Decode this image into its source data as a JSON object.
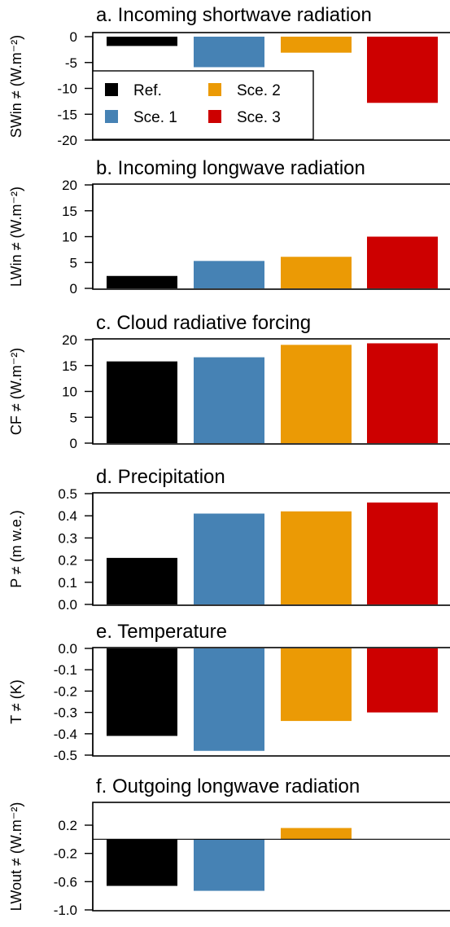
{
  "colors": {
    "Ref.": "#000000",
    "Sce. 1": "#4682b4",
    "Sce. 2": "#eb9a05",
    "Sce. 3": "#cd0000"
  },
  "legend": {
    "panel": 0,
    "entries": [
      "Ref.",
      "Sce. 1",
      "Sce. 2",
      "Sce. 3"
    ]
  },
  "chart_data": [
    {
      "type": "bar",
      "title": "a. Incoming shortwave radiation",
      "ylabel": "SWin ≠ (W.m⁻²)",
      "categories": [
        "Ref.",
        "Sce. 1",
        "Sce. 2",
        "Sce. 3"
      ],
      "values": [
        -1.8,
        -5.9,
        -3.1,
        -12.8
      ],
      "ylim": [
        -20,
        0
      ],
      "ticks": [
        0,
        -5,
        -10,
        -15,
        -20
      ],
      "tick_labels": [
        "0",
        "-5",
        "-10",
        "-15",
        "-20"
      ],
      "zero_line": false
    },
    {
      "type": "bar",
      "title": "b. Incoming longwave radiation",
      "ylabel": "LWin ≠ (W.m⁻²)",
      "categories": [
        "Ref.",
        "Sce. 1",
        "Sce. 2",
        "Sce. 3"
      ],
      "values": [
        2.4,
        5.3,
        6.1,
        10.0
      ],
      "ylim": [
        0,
        20
      ],
      "ticks": [
        0,
        5,
        10,
        15,
        20
      ],
      "tick_labels": [
        "0",
        "5",
        "10",
        "15",
        "20"
      ],
      "zero_line": false
    },
    {
      "type": "bar",
      "title": "c. Cloud radiative forcing",
      "ylabel": "CF ≠ (W.m⁻²)",
      "categories": [
        "Ref.",
        "Sce. 1",
        "Sce. 2",
        "Sce. 3"
      ],
      "values": [
        15.8,
        16.6,
        19.0,
        19.3
      ],
      "ylim": [
        0,
        20
      ],
      "ticks": [
        0,
        5,
        10,
        15,
        20
      ],
      "tick_labels": [
        "0",
        "5",
        "10",
        "15",
        "20"
      ],
      "zero_line": false
    },
    {
      "type": "bar",
      "title": "d. Precipitation",
      "ylabel": "P ≠ (m w.e.)",
      "categories": [
        "Ref.",
        "Sce. 1",
        "Sce. 2",
        "Sce. 3"
      ],
      "values": [
        0.21,
        0.41,
        0.42,
        0.46
      ],
      "ylim": [
        0,
        0.5
      ],
      "ticks": [
        0,
        0.1,
        0.2,
        0.3,
        0.4,
        0.5
      ],
      "tick_labels": [
        "0.0",
        "0.1",
        "0.2",
        "0.3",
        "0.4",
        "0.5"
      ],
      "zero_line": false
    },
    {
      "type": "bar",
      "title": "e. Temperature",
      "ylabel": "T ≠ (K)",
      "categories": [
        "Ref.",
        "Sce. 1",
        "Sce. 2",
        "Sce. 3"
      ],
      "values": [
        -0.41,
        -0.48,
        -0.34,
        -0.3
      ],
      "ylim": [
        -0.5,
        0
      ],
      "ticks": [
        0,
        -0.1,
        -0.2,
        -0.3,
        -0.4,
        -0.5
      ],
      "tick_labels": [
        "0.0",
        "-0.1",
        "-0.2",
        "-0.3",
        "-0.4",
        "-0.5"
      ],
      "zero_line": false
    },
    {
      "type": "bar",
      "title": "f. Outgoing longwave radiation",
      "ylabel": "LWout ≠ (W.m⁻²)",
      "categories": [
        "Ref.",
        "Sce. 1",
        "Sce. 2",
        "Sce. 3"
      ],
      "values": [
        -0.66,
        -0.73,
        0.16,
        0.0
      ],
      "ylim": [
        -1.0,
        0.4
      ],
      "ticks": [
        0.2,
        -0.2,
        -0.6,
        -1.0
      ],
      "tick_labels": [
        "0.2",
        "-0.2",
        "-0.6",
        "-1.0"
      ],
      "zero_line": true
    }
  ]
}
